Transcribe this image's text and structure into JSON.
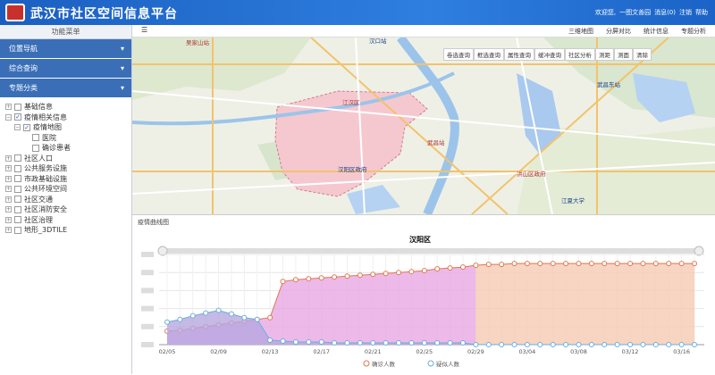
{
  "header": {
    "title": "武汉市社区空间信息平台",
    "user": [
      "欢迎您,",
      "一图文善园",
      "消息(0)",
      "注销",
      "帮助"
    ]
  },
  "sidebar": {
    "title": "功能菜单",
    "menus": [
      "位置导航",
      "综合查询",
      "专题分类"
    ],
    "tree": [
      {
        "label": "基础信息"
      },
      {
        "label": "疫情相关信息",
        "checked": true,
        "children": [
          {
            "label": "疫情地图",
            "checked": true,
            "children": [
              {
                "label": "医院"
              },
              {
                "label": "确诊患者"
              }
            ]
          }
        ]
      },
      {
        "label": "社区人口"
      },
      {
        "label": "公共服务设施"
      },
      {
        "label": "市政基础设施"
      },
      {
        "label": "公共环境空间"
      },
      {
        "label": "社区交通"
      },
      {
        "label": "社区消防安全"
      },
      {
        "label": "社区治理"
      },
      {
        "label": "地形_3DTILE"
      }
    ]
  },
  "toolbar": [
    "三维地图",
    "分屏对比",
    "统计信息",
    "专题分析"
  ],
  "map": {
    "tools": [
      "卷选查询",
      "框选查询",
      "属性查询",
      "缓冲查询",
      "社区分析",
      "测距",
      "测面",
      "清除"
    ],
    "labels": [
      "吴家山站",
      "汉口站",
      "江汉区",
      "汉阳区政府",
      "武昌站",
      "武昌东站",
      "洪山区政府",
      "江夏大学"
    ]
  },
  "panel": {
    "title": "疫情曲线图"
  },
  "chart_data": {
    "type": "line",
    "title": "汉阳区",
    "categories": [
      "02/05",
      null,
      null,
      null,
      "02/09",
      null,
      null,
      null,
      "02/13",
      null,
      null,
      null,
      "02/17",
      null,
      null,
      null,
      "02/21",
      null,
      null,
      null,
      "02/25",
      null,
      null,
      null,
      "02/29",
      null,
      null,
      null,
      "03/04",
      null,
      null,
      null,
      "03/08",
      null,
      null,
      null,
      "03/12",
      null,
      null,
      null,
      "03/16",
      null
    ],
    "series": [
      {
        "name": "确诊人数",
        "color": "#e07850",
        "values": [
          15,
          16,
          18,
          20,
          22,
          24,
          26,
          28,
          30,
          70,
          72,
          73,
          74,
          75,
          76,
          77,
          78,
          79,
          80,
          81,
          82,
          84,
          85,
          86,
          88,
          89,
          89,
          90,
          90,
          90,
          90,
          90,
          90,
          90,
          90,
          90,
          90,
          90,
          90,
          90,
          90,
          90
        ]
      },
      {
        "name": "疑似人数",
        "color": "#6aaedc",
        "values": [
          25,
          28,
          32,
          35,
          38,
          34,
          30,
          28,
          5,
          4,
          3,
          3,
          3,
          2,
          2,
          2,
          2,
          2,
          2,
          2,
          2,
          2,
          2,
          2,
          0,
          0,
          0,
          0,
          0,
          0,
          0,
          0,
          0,
          0,
          0,
          0,
          0,
          0,
          0,
          0,
          0,
          0
        ]
      }
    ],
    "ylim": [
      0,
      100
    ],
    "yticks": [
      0,
      20,
      40,
      60,
      80,
      100
    ],
    "grid": true
  }
}
